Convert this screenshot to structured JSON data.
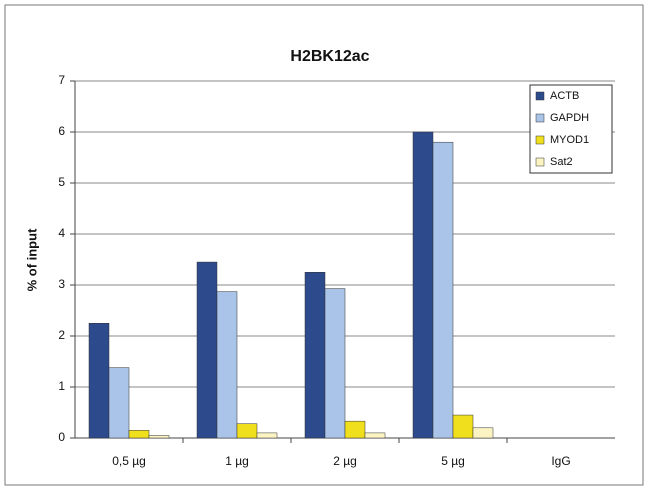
{
  "chart_data": {
    "type": "bar",
    "title": "H2BK12ac",
    "y_label": "% of input",
    "categories": [
      "0,5 µg",
      "1 µg",
      "2 µg",
      "5 µg",
      "IgG"
    ],
    "series": [
      {
        "name": "ACTB",
        "color": "#2d4a8c",
        "values": [
          2.25,
          3.45,
          3.25,
          6.0,
          0
        ]
      },
      {
        "name": "GAPDH",
        "color": "#a9c4e8",
        "values": [
          1.38,
          2.87,
          2.93,
          5.8,
          0
        ]
      },
      {
        "name": "MYOD1",
        "color": "#f0df1c",
        "values": [
          0.15,
          0.28,
          0.33,
          0.45,
          0
        ]
      },
      {
        "name": "Sat2",
        "color": "#fbf4c2",
        "values": [
          0.05,
          0.1,
          0.1,
          0.2,
          0
        ]
      }
    ],
    "ylim": [
      0,
      7
    ],
    "yticks": [
      0,
      1,
      2,
      3,
      4,
      5,
      6,
      7
    ],
    "grid": true,
    "legend": "top-right"
  }
}
